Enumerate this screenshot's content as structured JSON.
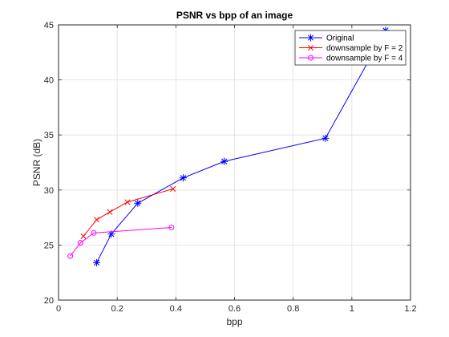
{
  "chart_data": {
    "type": "line",
    "title": "PSNR vs bpp of an image",
    "xlabel": "bpp",
    "ylabel": "PSNR (dB)",
    "xlim": [
      0,
      1.2
    ],
    "ylim": [
      20,
      45
    ],
    "xticks": [
      0,
      0.2,
      0.4,
      0.6,
      0.8,
      1,
      1.2
    ],
    "xtick_labels": [
      "0",
      "0.2",
      "0.4",
      "0.6",
      "0.8",
      "1",
      "1.2"
    ],
    "yticks": [
      20,
      25,
      30,
      35,
      40,
      45
    ],
    "ytick_labels": [
      "20",
      "25",
      "30",
      "35",
      "40",
      "45"
    ],
    "grid": true,
    "legend_position": "top-right",
    "series": [
      {
        "name": "Original",
        "color": "#0000ff",
        "marker": "star",
        "x": [
          0.13,
          0.18,
          0.27,
          0.425,
          0.565,
          0.91,
          1.115
        ],
        "y": [
          23.4,
          26.0,
          28.8,
          31.1,
          32.6,
          34.7,
          44.5
        ]
      },
      {
        "name": "downsample by F = 2",
        "color": "#ff0000",
        "marker": "x",
        "x": [
          0.085,
          0.13,
          0.175,
          0.235,
          0.39
        ],
        "y": [
          25.8,
          27.3,
          28.0,
          28.9,
          30.1
        ]
      },
      {
        "name": "downsample by F = 4",
        "color": "#ff00ff",
        "marker": "circle",
        "x": [
          0.04,
          0.075,
          0.12,
          0.385
        ],
        "y": [
          24.0,
          25.2,
          26.1,
          26.6
        ]
      }
    ]
  }
}
